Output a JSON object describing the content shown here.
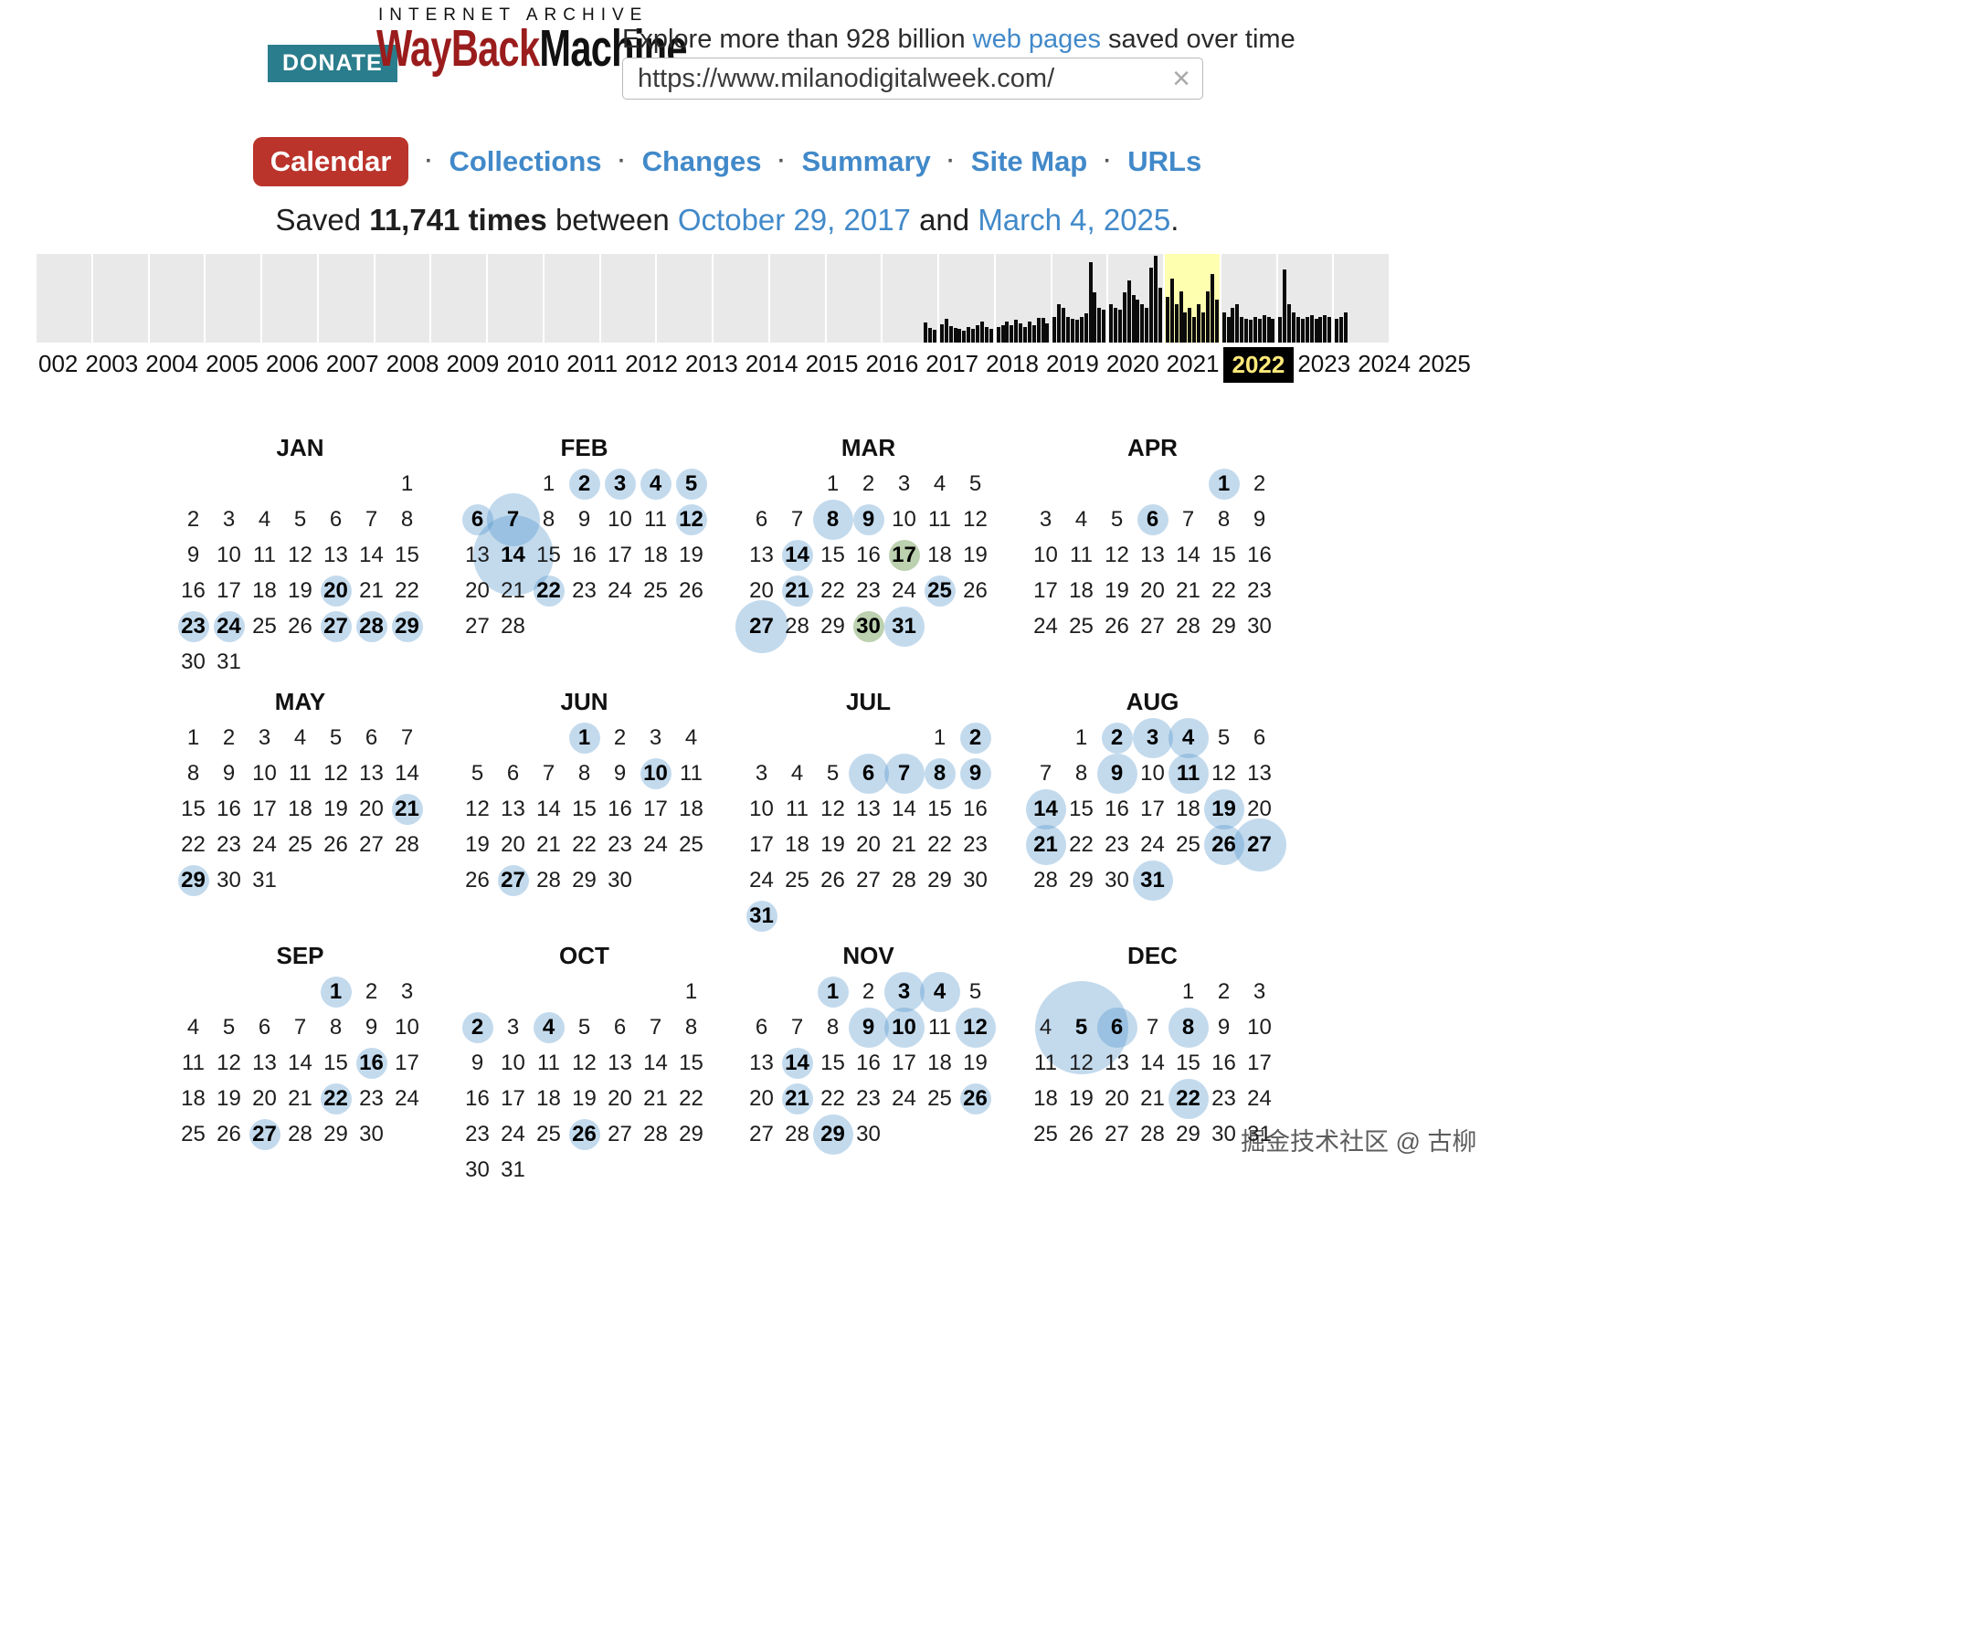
{
  "header": {
    "archive_label": "INTERNET ARCHIVE",
    "donate_label": "DONATE",
    "logo_part1": "WayBack",
    "logo_part2": "Machine",
    "tagline_pre": "Explore more than 928 billion ",
    "tagline_link": "web pages",
    "tagline_post": " saved over time",
    "url_value": "https://www.milanodigitalweek.com/",
    "clear_icon": "×"
  },
  "nav": {
    "active_label": "Calendar",
    "separator": "·",
    "links": [
      "Collections",
      "Changes",
      "Summary",
      "Site Map",
      "URLs"
    ]
  },
  "summary": {
    "pre": "Saved ",
    "count": "11,741 times",
    "mid": " between ",
    "from_date": "October 29, 2017",
    "and": " and ",
    "to_date": "March 4, 2025",
    "end": "."
  },
  "timeline": {
    "years": [
      "002",
      "2003",
      "2004",
      "2005",
      "2006",
      "2007",
      "2008",
      "2009",
      "2010",
      "2011",
      "2012",
      "2013",
      "2014",
      "2015",
      "2016",
      "2017",
      "2018",
      "2019",
      "2020",
      "2021",
      "2022",
      "2023",
      "2024",
      "2025"
    ],
    "selected_year": "2022",
    "highlight_color": "#ffffb0",
    "bar_color": "#0b0b0b",
    "series": {
      "2017": [
        0,
        0,
        0,
        0,
        0,
        0,
        0,
        0,
        0,
        22,
        16,
        14
      ],
      "2018": [
        20,
        26,
        18,
        16,
        15,
        13,
        17,
        15,
        19,
        23,
        17,
        15
      ],
      "2019": [
        17,
        19,
        23,
        19,
        25,
        21,
        17,
        23,
        19,
        27,
        27,
        21
      ],
      "2020": [
        28,
        42,
        38,
        28,
        26,
        25,
        28,
        32,
        88,
        55,
        38,
        36
      ],
      "2021": [
        42,
        38,
        36,
        55,
        68,
        52,
        47,
        42,
        38,
        82,
        95,
        60
      ],
      "2022": [
        50,
        70,
        42,
        56,
        33,
        38,
        28,
        42,
        33,
        56,
        75,
        47
      ],
      "2023": [
        33,
        28,
        38,
        42,
        28,
        26,
        25,
        28,
        26,
        30,
        28,
        26
      ],
      "2024": [
        28,
        80,
        42,
        33,
        28,
        26,
        28,
        30,
        26,
        28,
        30,
        28
      ],
      "2025": [
        26,
        28,
        33,
        0,
        0,
        0,
        0,
        0,
        0,
        0,
        0,
        0
      ]
    }
  },
  "calendar": {
    "snapshot_color": "#438bc7",
    "redirect_color": "#6a994e",
    "months": [
      {
        "name": "JAN",
        "start": 6,
        "days": 31,
        "marks": {
          "20": "s",
          "23": "s",
          "24": "s",
          "27": "s",
          "28": "s",
          "29": "s"
        }
      },
      {
        "name": "FEB",
        "start": 2,
        "days": 28,
        "marks": {
          "2": "s",
          "3": "s",
          "4": "s",
          "5": "s",
          "6": "s",
          "7": "l",
          "12": "s",
          "14": "xl",
          "22": "s"
        }
      },
      {
        "name": "MAR",
        "start": 2,
        "days": 31,
        "marks": {
          "8": "m",
          "9": "s",
          "14": "s",
          "17": "gs",
          "21": "s",
          "25": "s",
          "27": "l",
          "30": "gs",
          "31": "m"
        }
      },
      {
        "name": "APR",
        "start": 5,
        "days": 30,
        "marks": {
          "1": "s",
          "6": "s"
        }
      },
      {
        "name": "MAY",
        "start": 0,
        "days": 31,
        "marks": {
          "21": "s",
          "29": "s"
        }
      },
      {
        "name": "JUN",
        "start": 3,
        "days": 30,
        "marks": {
          "1": "s",
          "10": "s",
          "27": "s"
        }
      },
      {
        "name": "JUL",
        "start": 5,
        "days": 31,
        "marks": {
          "2": "s",
          "6": "m",
          "7": "m",
          "8": "s",
          "9": "s",
          "31": "s"
        }
      },
      {
        "name": "AUG",
        "start": 1,
        "days": 31,
        "marks": {
          "2": "s",
          "3": "m",
          "4": "m",
          "9": "m",
          "11": "m",
          "14": "m",
          "19": "m",
          "21": "m",
          "26": "m",
          "27": "l",
          "31": "m"
        }
      },
      {
        "name": "SEP",
        "start": 4,
        "days": 30,
        "marks": {
          "1": "s",
          "16": "s",
          "22": "s",
          "27": "s"
        }
      },
      {
        "name": "OCT",
        "start": 6,
        "days": 31,
        "marks": {
          "2": "s",
          "4": "s",
          "26": "s"
        }
      },
      {
        "name": "NOV",
        "start": 2,
        "days": 30,
        "marks": {
          "1": "s",
          "3": "m",
          "4": "m",
          "9": "m",
          "10": "m",
          "12": "m",
          "14": "s",
          "21": "s",
          "26": "s",
          "29": "m"
        }
      },
      {
        "name": "DEC",
        "start": 4,
        "days": 31,
        "marks": {
          "5": "xxl",
          "6": "m",
          "8": "m",
          "22": "m"
        }
      }
    ]
  },
  "watermark": "掘金技术社区 @ 古柳"
}
